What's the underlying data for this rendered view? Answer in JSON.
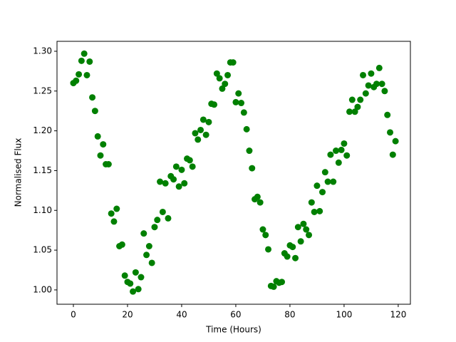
{
  "chart_data": {
    "type": "scatter",
    "x_label": "Time (Hours)",
    "y_label": "Normalised Flux",
    "color": "#008000",
    "x": [
      0,
      1,
      2,
      3,
      4,
      5,
      6,
      7,
      8,
      9,
      10,
      11,
      12,
      13,
      14,
      15,
      16,
      17,
      18,
      19,
      20,
      21,
      22,
      23,
      24,
      25,
      26,
      27,
      28,
      29,
      30,
      31,
      32,
      33,
      34,
      35,
      36,
      37,
      38,
      39,
      40,
      41,
      42,
      43,
      44,
      45,
      46,
      47,
      48,
      49,
      50,
      51,
      52,
      53,
      54,
      55,
      56,
      57,
      58,
      59,
      60,
      61,
      62,
      63,
      64,
      65,
      66,
      67,
      68,
      69,
      70,
      71,
      72,
      73,
      74,
      75,
      76,
      77,
      78,
      79,
      80,
      81,
      82,
      83,
      84,
      85,
      86,
      87,
      88,
      89,
      90,
      91,
      92,
      93,
      94,
      95,
      96,
      97,
      98,
      99,
      100,
      101,
      102,
      103,
      104,
      105,
      106,
      107,
      108,
      109,
      110,
      111,
      112,
      113,
      114,
      115,
      116,
      117,
      118,
      119
    ],
    "values": [
      1.26,
      1.263,
      1.271,
      1.288,
      1.297,
      1.27,
      1.287,
      1.242,
      1.225,
      1.193,
      1.169,
      1.183,
      1.158,
      1.158,
      1.096,
      1.086,
      1.102,
      1.055,
      1.057,
      1.018,
      1.01,
      1.008,
      0.998,
      1.022,
      1.001,
      1.016,
      1.071,
      1.044,
      1.055,
      1.034,
      1.079,
      1.088,
      1.136,
      1.098,
      1.134,
      1.09,
      1.143,
      1.139,
      1.155,
      1.13,
      1.151,
      1.134,
      1.165,
      1.163,
      1.155,
      1.197,
      1.189,
      1.201,
      1.214,
      1.195,
      1.211,
      1.234,
      1.233,
      1.272,
      1.266,
      1.253,
      1.259,
      1.27,
      1.286,
      1.286,
      1.236,
      1.247,
      1.235,
      1.223,
      1.202,
      1.175,
      1.153,
      1.114,
      1.117,
      1.11,
      1.076,
      1.069,
      1.051,
      1.005,
      1.004,
      1.011,
      1.009,
      1.01,
      1.046,
      1.042,
      1.056,
      1.054,
      1.04,
      1.079,
      1.061,
      1.083,
      1.076,
      1.069,
      1.11,
      1.098,
      1.131,
      1.099,
      1.123,
      1.148,
      1.136,
      1.17,
      1.136,
      1.175,
      1.16,
      1.176,
      1.184,
      1.169,
      1.224,
      1.239,
      1.224,
      1.23,
      1.239,
      1.27,
      1.247,
      1.257,
      1.272,
      1.255,
      1.259,
      1.279,
      1.259,
      1.25,
      1.22,
      1.198,
      1.17,
      1.187
    ],
    "xlim": [
      -6.05,
      124.5
    ],
    "ylim": [
      0.982,
      1.3125
    ],
    "xticks": [
      0,
      20,
      40,
      60,
      80,
      100,
      120
    ],
    "yticks": [
      {
        "value": 1,
        "label": "1.00"
      },
      1.05,
      {
        "value": 1.1,
        "label": "1.10"
      },
      1.15,
      {
        "value": 1.2,
        "label": "1.20"
      },
      1.25,
      {
        "value": 1.3,
        "label": "1.30"
      }
    ]
  }
}
